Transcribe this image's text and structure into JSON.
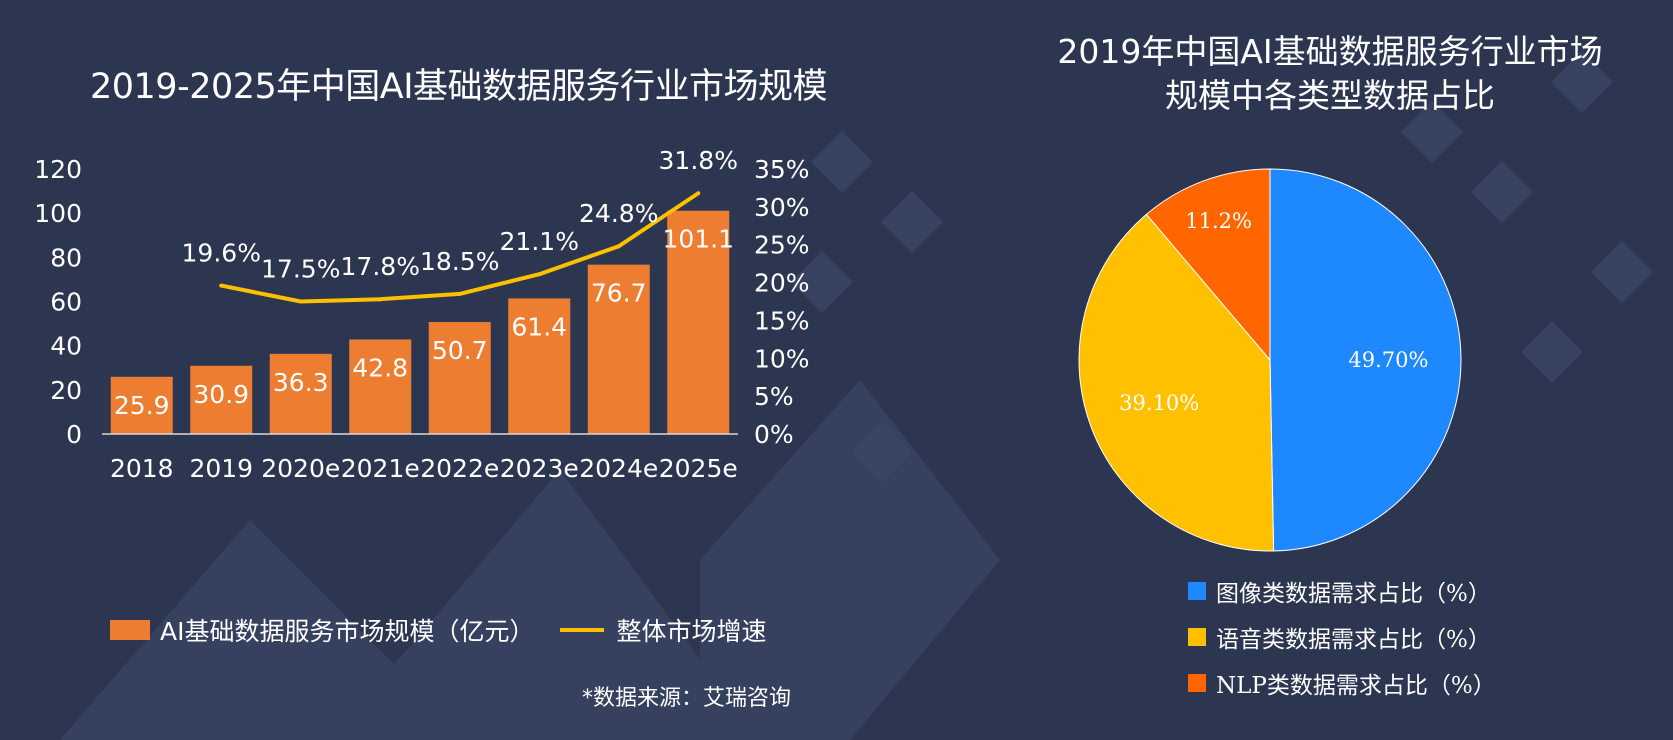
{
  "left_chart": {
    "title": "2019-2025年中国AI基础数据服务行业市场规模",
    "legend_bar": "AI基础数据服务市场规模（亿元）",
    "legend_line": "整体市场增速",
    "source": "*数据来源：艾瑞咨询"
  },
  "right_chart": {
    "title_line1": "2019年中国AI基础数据服务行业市场",
    "title_line2": "规模中各类型数据占比",
    "legend": [
      {
        "label": "图像类数据需求占比（%）",
        "color": "#1e88ff"
      },
      {
        "label": "语音类数据需求占比（%）",
        "color": "#ffc000"
      },
      {
        "label": "NLP类数据需求占比（%）",
        "color": "#ff6600"
      }
    ]
  },
  "colors": {
    "background": "#2c3650",
    "bar": "#ed7d31",
    "line": "#ffc000",
    "text": "#ffffff"
  },
  "chart_data": [
    {
      "type": "bar",
      "title": "2019-2025年中国AI基础数据服务行业市场规模",
      "categories": [
        "2018",
        "2019",
        "2020e",
        "2021e",
        "2022e",
        "2023e",
        "2024e",
        "2025e"
      ],
      "series": [
        {
          "name": "AI基础数据服务市场规模（亿元）",
          "type": "bar",
          "values": [
            25.9,
            30.9,
            36.3,
            42.8,
            50.7,
            61.4,
            76.7,
            101.1
          ],
          "labels": [
            "25.9",
            "30.9",
            "36.3",
            "42.8",
            "50.7",
            "61.4",
            "76.7",
            "101.1"
          ]
        },
        {
          "name": "整体市场增速",
          "type": "line",
          "axis": "right",
          "values": [
            null,
            19.6,
            17.5,
            17.8,
            18.5,
            21.1,
            24.8,
            31.8
          ],
          "labels": [
            "",
            "19.6%",
            "17.5%",
            "17.8%",
            "18.5%",
            "21.1%",
            "24.8%",
            "31.8%"
          ]
        }
      ],
      "ylim": [
        0,
        120
      ],
      "yticks": [
        "0",
        "20",
        "40",
        "60",
        "80",
        "100",
        "120"
      ],
      "y2lim": [
        0,
        35
      ],
      "y2ticks": [
        "0%",
        "5%",
        "10%",
        "15%",
        "20%",
        "25%",
        "30%",
        "35%"
      ],
      "legend": "bottom",
      "grid": false
    },
    {
      "type": "pie",
      "title": "2019年中国AI基础数据服务行业市场规模中各类型数据占比",
      "categories": [
        "图像类数据需求占比（%）",
        "语音类数据需求占比（%）",
        "NLP类数据需求占比（%）"
      ],
      "values": [
        49.7,
        39.1,
        11.2
      ],
      "labels": [
        "49.70%",
        "39.10%",
        "11.2%"
      ],
      "colors": [
        "#1e88ff",
        "#ffc000",
        "#ff6600"
      ],
      "legend": "bottom"
    }
  ]
}
